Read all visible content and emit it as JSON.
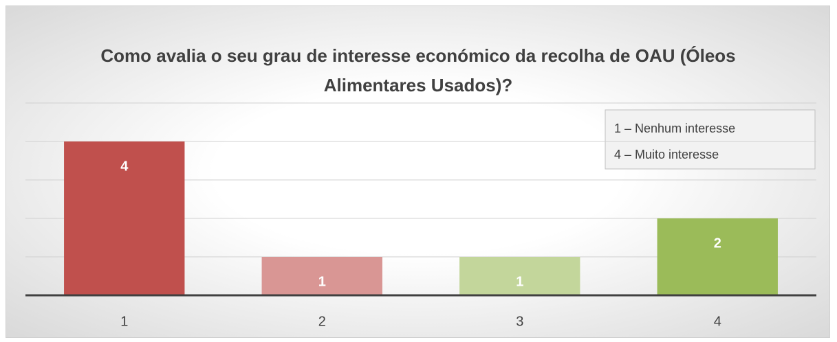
{
  "chart_data": {
    "type": "bar",
    "title": "Como avalia o seu grau de interesse económico da recolha de OAU (Óleos Alimentares Usados)?",
    "categories": [
      "1",
      "2",
      "3",
      "4"
    ],
    "values": [
      4,
      1,
      1,
      2
    ],
    "colors": [
      "#c0504d",
      "#d99694",
      "#c3d69b",
      "#9bbb59"
    ],
    "ylim": [
      0,
      5
    ],
    "yticks": [
      0,
      1,
      2,
      3,
      4,
      5
    ],
    "grid": true,
    "annotations": [
      "1 – Nenhum interesse",
      "4 – Muito interesse"
    ]
  }
}
